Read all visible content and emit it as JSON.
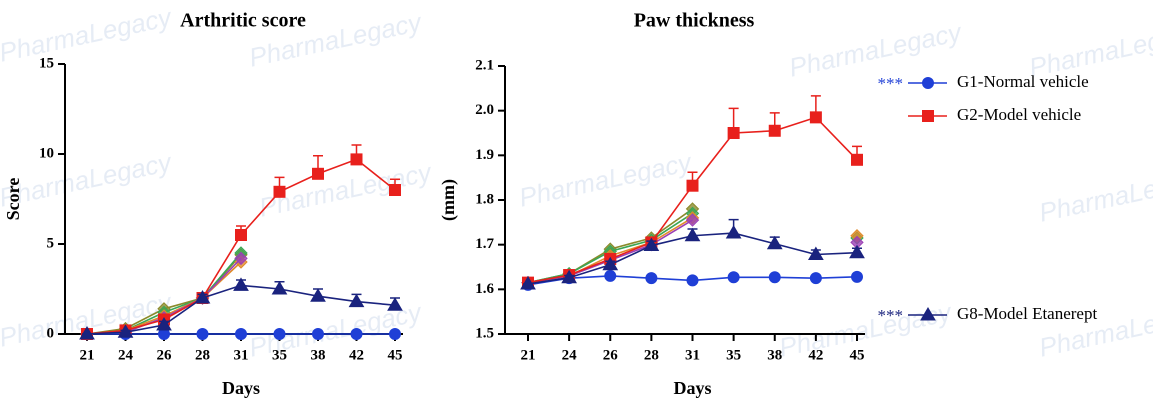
{
  "watermark": "PharmaLegacy",
  "chart_data": [
    {
      "type": "line",
      "title": "Arthritic score",
      "ylabel": "Score",
      "xlabel": "Days",
      "categories": [
        "21",
        "24",
        "26",
        "28",
        "31",
        "35",
        "38",
        "42",
        "45"
      ],
      "ylim": [
        0,
        15
      ],
      "yticks": [
        0,
        5,
        10,
        15
      ],
      "series": [
        {
          "color": "#8a8a2a",
          "marker": "diamond",
          "values": [
            0,
            0.3,
            1.4,
            2.0,
            4.4,
            null,
            null,
            null,
            null
          ]
        },
        {
          "color": "#3aa655",
          "marker": "diamond",
          "values": [
            0,
            0.2,
            1.2,
            2.0,
            4.5,
            null,
            null,
            null,
            null
          ]
        },
        {
          "color": "#e08a2a",
          "marker": "diamond",
          "values": [
            0,
            0.2,
            1.0,
            2.0,
            4.0,
            null,
            null,
            null,
            null
          ]
        },
        {
          "color": "#9b3fb5",
          "marker": "diamond",
          "values": [
            0,
            0.1,
            0.9,
            2.0,
            4.2,
            null,
            null,
            null,
            null
          ]
        },
        {
          "color": "#1f3fd6",
          "marker": "circle",
          "values": [
            0,
            0,
            0,
            0,
            0,
            0,
            0,
            0,
            0
          ]
        },
        {
          "color": "#e8201c",
          "marker": "square",
          "values": [
            0,
            0.2,
            0.8,
            2.0,
            5.5,
            7.9,
            8.9,
            9.7,
            8.0
          ],
          "errors": [
            0,
            0.1,
            0.3,
            0.2,
            0.5,
            0.8,
            1.0,
            0.8,
            0.6
          ]
        },
        {
          "color": "#1a237e",
          "marker": "triangle",
          "values": [
            0,
            0.1,
            0.5,
            2.0,
            2.7,
            2.5,
            2.1,
            1.8,
            1.6
          ],
          "errors": [
            0,
            0.1,
            0.2,
            0.2,
            0.3,
            0.4,
            0.4,
            0.4,
            0.4
          ]
        }
      ]
    },
    {
      "type": "line",
      "title": "Paw thickness",
      "ylabel": "(mm)",
      "xlabel": "Days",
      "categories": [
        "21",
        "24",
        "26",
        "28",
        "31",
        "35",
        "38",
        "42",
        "45"
      ],
      "ylim": [
        1.5,
        2.1
      ],
      "yticks": [
        1.5,
        1.6,
        1.7,
        1.8,
        1.9,
        {
          "value": 2,
          "label": "2.0"
        },
        2.1
      ],
      "series": [
        {
          "color": "#8a8a2a",
          "marker": "diamond",
          "values": [
            1.615,
            1.635,
            1.69,
            1.715,
            1.78,
            null,
            null,
            null,
            null
          ]
        },
        {
          "color": "#3aa655",
          "marker": "diamond",
          "values": [
            1.615,
            1.635,
            1.685,
            1.71,
            1.77,
            null,
            null,
            null,
            1.715
          ]
        },
        {
          "color": "#e08a2a",
          "marker": "diamond",
          "values": [
            1.615,
            1.63,
            1.675,
            1.705,
            1.76,
            null,
            null,
            null,
            1.72
          ]
        },
        {
          "color": "#9b3fb5",
          "marker": "diamond",
          "values": [
            1.615,
            1.63,
            1.665,
            1.7,
            1.755,
            null,
            null,
            null,
            1.705
          ]
        },
        {
          "name": "G1-Normal vehicle",
          "annotation": "***",
          "color": "#1f3fd6",
          "marker": "circle",
          "values": [
            1.61,
            1.625,
            1.63,
            1.625,
            1.62,
            1.627,
            1.627,
            1.625,
            1.628
          ]
        },
        {
          "name": "G2-Model vehicle",
          "color": "#e8201c",
          "marker": "square",
          "values": [
            1.615,
            1.632,
            1.668,
            1.705,
            1.832,
            1.95,
            1.955,
            1.985,
            1.89
          ],
          "errors": [
            0,
            0.005,
            0.01,
            0.01,
            0.03,
            0.055,
            0.04,
            0.048,
            0.03
          ]
        },
        {
          "name": "G8-Model Etanerept",
          "annotation": "***",
          "color": "#1a237e",
          "marker": "triangle",
          "values": [
            1.612,
            1.626,
            1.655,
            1.698,
            1.72,
            1.726,
            1.702,
            1.678,
            1.682
          ],
          "errors": [
            0,
            0.005,
            0.008,
            0.01,
            0.015,
            0.03,
            0.015,
            0.01,
            0.01
          ]
        }
      ]
    }
  ]
}
